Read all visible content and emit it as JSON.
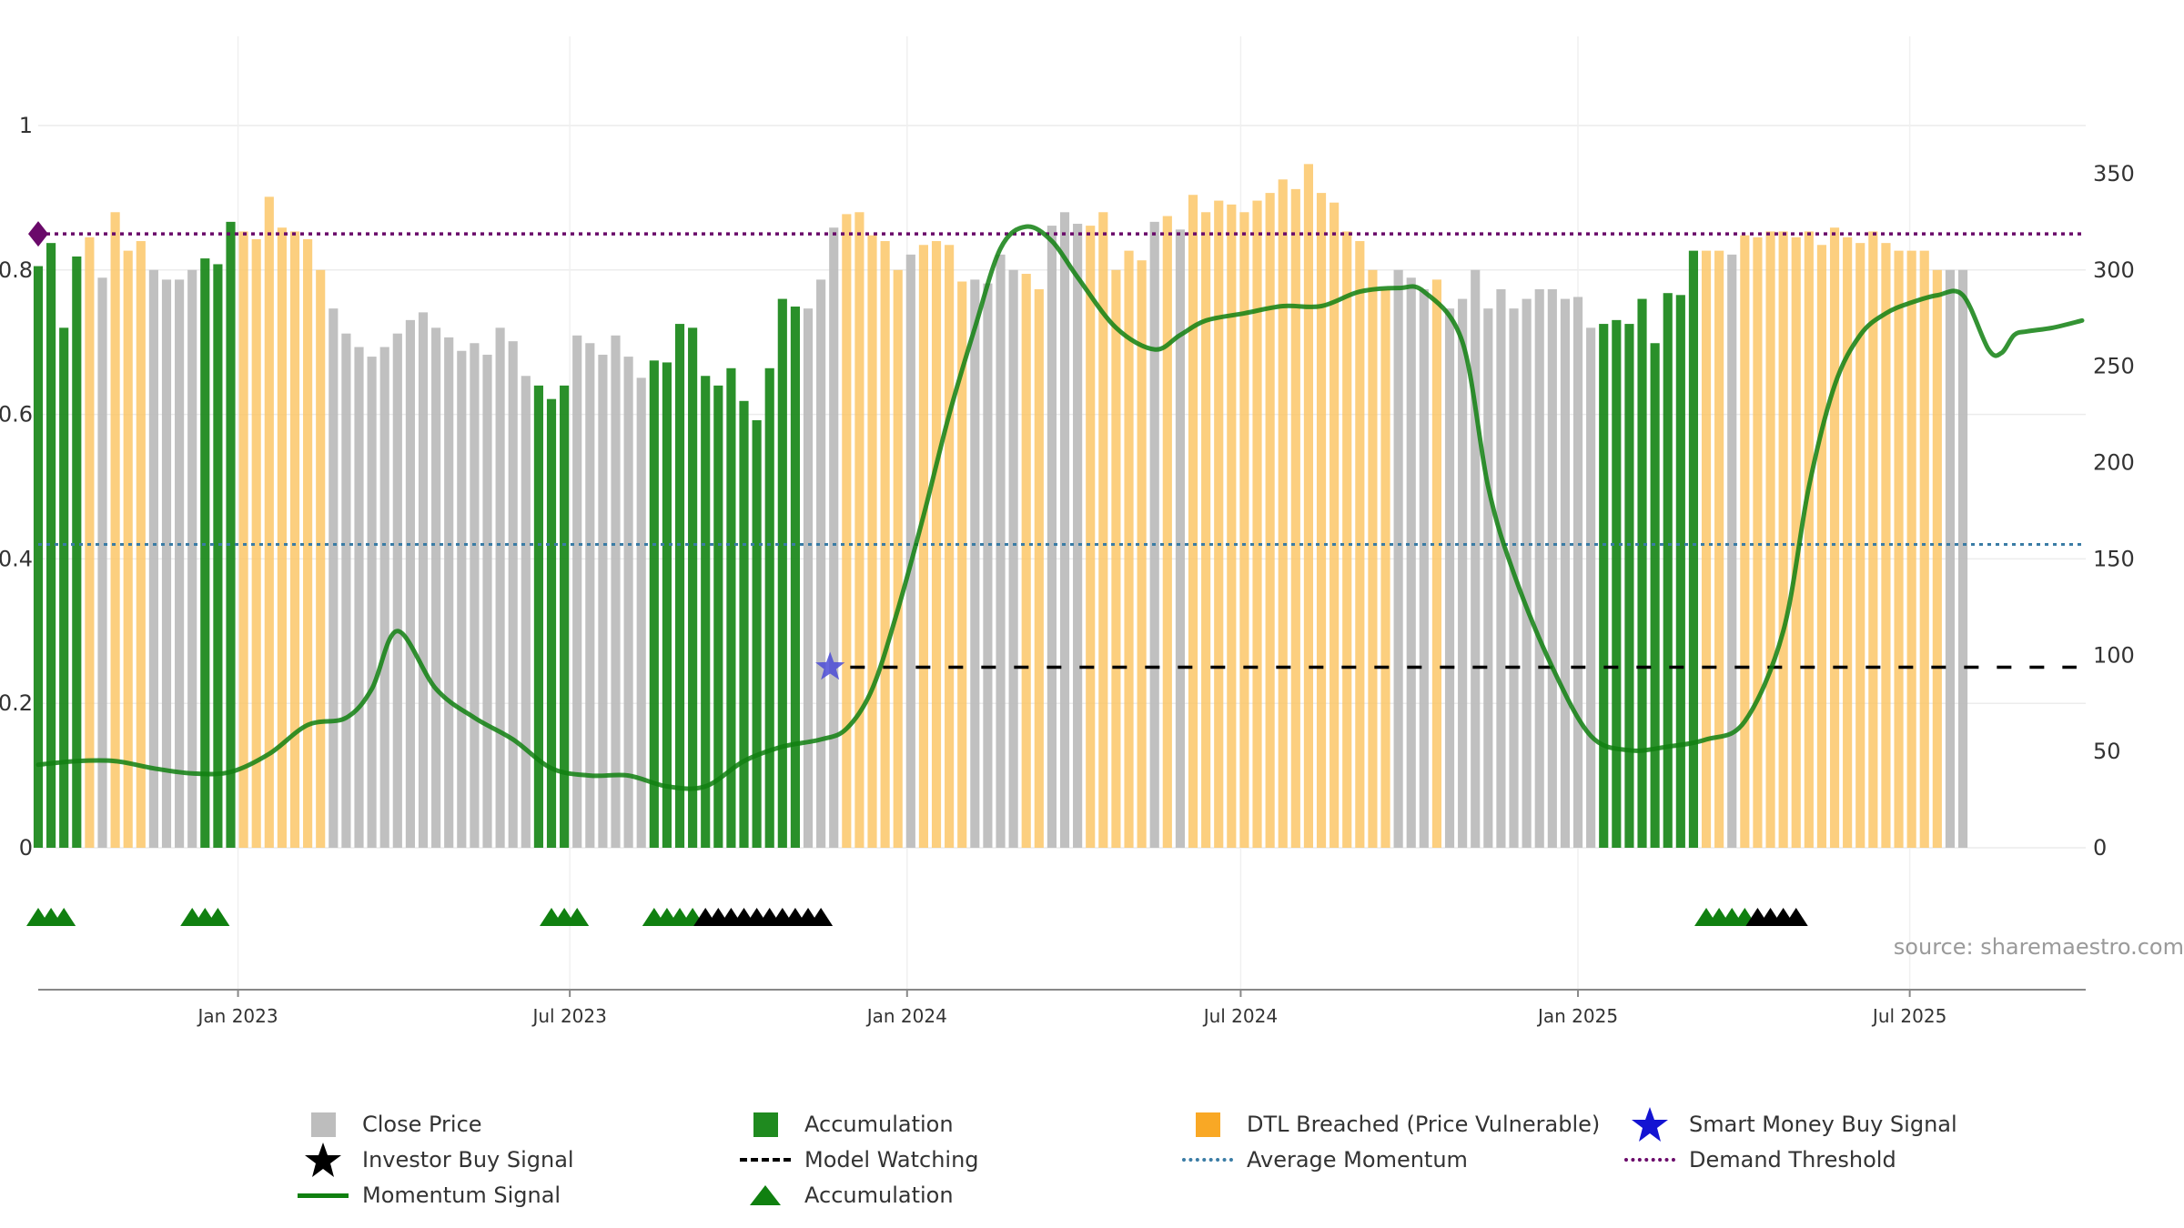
{
  "chart_data": {
    "type": "bar",
    "source_note": "source: sharemaestro.com",
    "left_axis": {
      "ylim": [
        0,
        1
      ],
      "ticks": [
        0,
        0.2,
        0.4,
        0.6,
        0.8,
        1
      ],
      "tick_labels": [
        "0",
        "0.2",
        "0.4",
        "0.6",
        "0.8",
        "1"
      ]
    },
    "right_axis": {
      "ylim": [
        0,
        375
      ],
      "ticks": [
        0,
        50,
        100,
        150,
        200,
        250,
        300,
        350
      ],
      "tick_labels": [
        "0",
        "50",
        "100",
        "150",
        "200",
        "250",
        "300",
        "350"
      ]
    },
    "x_axis": {
      "range": [
        "2022-09-14",
        "2025-10-05"
      ],
      "ticks": [
        "2023-01-01",
        "2023-07-01",
        "2024-01-01",
        "2024-07-01",
        "2025-01-01",
        "2025-07-01"
      ],
      "tick_labels": [
        "Jan 2023",
        "Jul 2023",
        "Jan 2024",
        "Jul 2024",
        "Jan 2025",
        "Jul 2025"
      ]
    },
    "grid": true,
    "legend_position": "bottom",
    "bar_start_date": "2022-09-14",
    "bar_interval_days": 7,
    "close_prices": [
      302,
      314,
      270,
      307,
      317,
      296,
      330,
      310,
      315,
      300,
      295,
      295,
      300,
      306,
      303,
      325,
      320,
      316,
      338,
      322,
      320,
      316,
      300,
      280,
      267,
      260,
      255,
      260,
      267,
      274,
      278,
      270,
      265,
      258,
      262,
      256,
      270,
      263,
      245,
      240,
      233,
      240,
      266,
      262,
      256,
      266,
      255,
      244,
      253,
      252,
      272,
      270,
      245,
      240,
      249,
      232,
      222,
      249,
      285,
      281,
      280,
      295,
      322,
      329,
      330,
      318,
      315,
      300,
      308,
      313,
      315,
      313,
      294,
      295,
      293,
      308,
      300,
      298,
      290,
      323,
      330,
      324,
      323,
      330,
      300,
      310,
      305,
      325,
      328,
      321,
      339,
      330,
      336,
      334,
      330,
      336,
      340,
      347,
      342,
      355,
      340,
      335,
      320,
      315,
      300,
      290,
      300,
      296,
      290,
      295,
      280,
      285,
      300,
      280,
      290,
      280,
      285,
      290,
      290,
      285,
      286,
      270,
      272,
      274,
      272,
      285,
      262,
      288,
      287,
      310,
      310,
      310,
      308,
      318,
      317,
      320,
      320,
      317,
      320,
      313,
      322,
      317,
      314,
      320,
      314,
      310,
      310,
      310,
      300,
      300,
      300
    ],
    "bar_categories": [
      "A",
      "A",
      "A",
      "A",
      "D",
      "C",
      "D",
      "D",
      "D",
      "C",
      "C",
      "C",
      "C",
      "A",
      "A",
      "A",
      "D",
      "D",
      "D",
      "D",
      "D",
      "D",
      "D",
      "C",
      "C",
      "C",
      "C",
      "C",
      "C",
      "C",
      "C",
      "C",
      "C",
      "C",
      "C",
      "C",
      "C",
      "C",
      "C",
      "A",
      "A",
      "A",
      "C",
      "C",
      "C",
      "C",
      "C",
      "C",
      "A",
      "A",
      "A",
      "A",
      "A",
      "A",
      "A",
      "A",
      "A",
      "A",
      "A",
      "A",
      "C",
      "C",
      "C",
      "D",
      "D",
      "D",
      "D",
      "D",
      "C",
      "D",
      "D",
      "D",
      "D",
      "C",
      "C",
      "C",
      "C",
      "D",
      "D",
      "C",
      "C",
      "C",
      "D",
      "D",
      "D",
      "D",
      "D",
      "C",
      "D",
      "C",
      "D",
      "D",
      "D",
      "D",
      "D",
      "D",
      "D",
      "D",
      "D",
      "D",
      "D",
      "D",
      "D",
      "D",
      "D",
      "D",
      "C",
      "C",
      "C",
      "D",
      "C",
      "C",
      "C",
      "C",
      "C",
      "C",
      "C",
      "C",
      "C",
      "C",
      "C",
      "C",
      "A",
      "A",
      "A",
      "A",
      "A",
      "A",
      "A",
      "A",
      "D",
      "D",
      "C",
      "D",
      "D",
      "D",
      "D",
      "D",
      "D",
      "D",
      "D",
      "D",
      "D",
      "D",
      "D",
      "D",
      "D",
      "D",
      "D",
      "C",
      "C"
    ],
    "momentum": {
      "dates": [
        "2022-09-14",
        "2022-10-05",
        "2022-10-26",
        "2022-11-16",
        "2022-12-07",
        "2022-12-28",
        "2023-01-18",
        "2023-02-08",
        "2023-03-01",
        "2023-03-15",
        "2023-03-29",
        "2023-04-19",
        "2023-05-10",
        "2023-05-31",
        "2023-06-21",
        "2023-07-12",
        "2023-08-02",
        "2023-08-23",
        "2023-09-13",
        "2023-10-04",
        "2023-10-25",
        "2023-11-15",
        "2023-11-29",
        "2023-12-13",
        "2023-12-27",
        "2024-01-10",
        "2024-01-24",
        "2024-02-07",
        "2024-02-21",
        "2024-03-06",
        "2024-03-20",
        "2024-04-03",
        "2024-04-24",
        "2024-05-15",
        "2024-05-29",
        "2024-06-12",
        "2024-07-03",
        "2024-07-24",
        "2024-08-14",
        "2024-09-04",
        "2024-09-25",
        "2024-10-09",
        "2024-10-30",
        "2024-11-13",
        "2024-11-27",
        "2024-12-18",
        "2025-01-08",
        "2025-01-29",
        "2025-02-19",
        "2025-03-12",
        "2025-04-02",
        "2025-04-23",
        "2025-05-07",
        "2025-05-21",
        "2025-06-04",
        "2025-06-18",
        "2025-07-02",
        "2025-07-16",
        "2025-07-30",
        "2025-08-13",
        "2025-08-20",
        "2025-08-27",
        "2025-09-03",
        "2025-09-17",
        "2025-10-03"
      ],
      "values": [
        0.115,
        0.12,
        0.12,
        0.11,
        0.103,
        0.105,
        0.13,
        0.17,
        0.18,
        0.22,
        0.3,
        0.22,
        0.18,
        0.15,
        0.11,
        0.1,
        0.1,
        0.085,
        0.085,
        0.12,
        0.14,
        0.15,
        0.165,
        0.22,
        0.33,
        0.46,
        0.6,
        0.72,
        0.83,
        0.86,
        0.84,
        0.79,
        0.72,
        0.69,
        0.71,
        0.73,
        0.74,
        0.75,
        0.75,
        0.77,
        0.775,
        0.77,
        0.7,
        0.5,
        0.38,
        0.25,
        0.155,
        0.135,
        0.14,
        0.15,
        0.175,
        0.3,
        0.5,
        0.64,
        0.71,
        0.74,
        0.755,
        0.765,
        0.765,
        0.69,
        0.685,
        0.71,
        0.715,
        0.72,
        0.73
      ]
    },
    "demand_threshold": 0.85,
    "average_momentum": 0.42,
    "model_watching": {
      "level": 0.25,
      "start": "2023-12-01",
      "end": "2025-09-30"
    },
    "smart_money_buy_signal": {
      "date": "2023-11-20",
      "value": 0.25
    },
    "signal_row": {
      "accumulation": [
        "2022-09-14",
        "2022-09-21",
        "2022-09-28",
        "2022-12-07",
        "2022-12-14",
        "2022-12-21",
        "2023-06-21",
        "2023-06-28",
        "2023-07-05",
        "2023-08-16",
        "2023-08-23",
        "2023-08-30",
        "2023-09-06"
      ],
      "investor_buy": [
        "2023-09-13",
        "2023-09-20",
        "2023-09-27",
        "2023-10-04",
        "2023-10-11",
        "2023-10-18",
        "2023-10-25",
        "2023-11-01",
        "2023-11-08",
        "2023-11-15"
      ],
      "accumulation_2025": [
        "2025-03-12",
        "2025-03-19",
        "2025-03-26",
        "2025-04-02"
      ],
      "investor_buy_2025": [
        "2025-04-09",
        "2025-04-16",
        "2025-04-23",
        "2025-04-30"
      ]
    },
    "legend": [
      {
        "key": "close",
        "label": "Close Price",
        "symbol": "box",
        "color": "#bdbdbd"
      },
      {
        "key": "accum",
        "label": "Accumulation",
        "symbol": "box",
        "color": "#1f8a1f"
      },
      {
        "key": "dtl",
        "label": "DTL Breached (Price Vulnerable)",
        "symbol": "box",
        "color": "#f9a825"
      },
      {
        "key": "smart",
        "label": "Smart Money Buy Signal",
        "symbol": "star",
        "color": "#1414d2"
      },
      {
        "key": "investor",
        "label": "Investor Buy Signal",
        "symbol": "star",
        "color": "#000000"
      },
      {
        "key": "watch",
        "label": "Model Watching",
        "symbol": "dash",
        "color": "#000000"
      },
      {
        "key": "avg",
        "label": "Average Momentum",
        "symbol": "dot",
        "color": "#3a7ca5"
      },
      {
        "key": "demand",
        "label": "Demand Threshold",
        "symbol": "dot",
        "color": "#6a0a6a"
      },
      {
        "key": "momentum",
        "label": "Momentum Signal",
        "symbol": "line",
        "color": "#108010"
      },
      {
        "key": "accum_tri",
        "label": "Accumulation",
        "symbol": "triangle",
        "color": "#108010"
      }
    ],
    "colors": {
      "close": "#bdbdbd",
      "accumulation": "#1f8a1f",
      "dtl": "#fcc768",
      "momentum": "#108010",
      "demand": "#6a0a6a",
      "average": "#3a7ca5",
      "watch": "#000000",
      "smart": "#4b4bd6",
      "triangle": "#108010",
      "investor_triangle": "#000000"
    }
  }
}
